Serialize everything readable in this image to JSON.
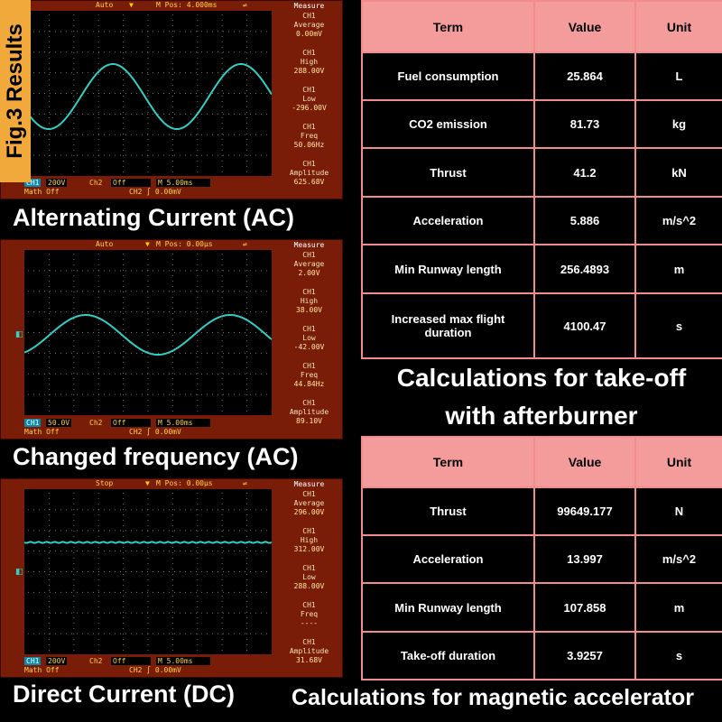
{
  "fig_label": "Fig.3 Results",
  "scopes": [
    {
      "top_mode": "Auto",
      "top_mpos": "M Pos: 4.000ms",
      "measure_title": "Measure",
      "measurements": [
        {
          "ch": "CH1",
          "label": "Average",
          "value": "0.00mV"
        },
        {
          "ch": "CH1",
          "label": "High",
          "value": "288.00V"
        },
        {
          "ch": "CH1",
          "label": "Low",
          "value": "-296.00V"
        },
        {
          "ch": "CH1",
          "label": "Freq",
          "value": "50.06Hz"
        },
        {
          "ch": "CH1",
          "label": "Amplitude",
          "value": "625.68V"
        }
      ],
      "ch1_label": "CH1",
      "ch1_scale": "200V",
      "ch2_label": "Ch2",
      "ch2_state": "Off",
      "timebase": "M 5.00ms",
      "math": "Math  Off",
      "trigger": "CH2  ∫  0.00mV",
      "caption": "Alternating Current (AC)"
    },
    {
      "top_mode": "Auto",
      "top_mpos": "M Pos: 0.00µs",
      "measure_title": "Measure",
      "measurements": [
        {
          "ch": "CH1",
          "label": "Average",
          "value": "2.00V"
        },
        {
          "ch": "CH1",
          "label": "High",
          "value": "38.00V"
        },
        {
          "ch": "CH1",
          "label": "Low",
          "value": "-42.00V"
        },
        {
          "ch": "CH1",
          "label": "Freq",
          "value": "44.84Hz"
        },
        {
          "ch": "CH1",
          "label": "Amplitude",
          "value": "89.10V"
        }
      ],
      "ch1_label": "CH1",
      "ch1_scale": "50.0V",
      "ch2_label": "Ch2",
      "ch2_state": "Off",
      "timebase": "M 5.00ms",
      "math": "Math  Off",
      "trigger": "CH2  ∫  0.00mV",
      "caption": "Changed frequency (AC)"
    },
    {
      "top_mode": "Stop",
      "top_mpos": "M Pos: 0.00µs",
      "measure_title": "Measure",
      "measurements": [
        {
          "ch": "CH1",
          "label": "Average",
          "value": "296.00V"
        },
        {
          "ch": "CH1",
          "label": "High",
          "value": "312.00V"
        },
        {
          "ch": "CH1",
          "label": "Low",
          "value": "288.00V"
        },
        {
          "ch": "CH1",
          "label": "Freq",
          "value": "----"
        },
        {
          "ch": "CH1",
          "label": "Amplitude",
          "value": "31.68V"
        }
      ],
      "ch1_label": "CH1",
      "ch1_scale": "200V",
      "ch2_label": "Ch2",
      "ch2_state": "Off",
      "timebase": "M 5.00ms",
      "math": "Math  Off",
      "trigger": "CH2  ∫  0.00mV",
      "caption": "Direct Current (DC)"
    }
  ],
  "table1": {
    "headers": [
      "Term",
      "Value",
      "Unit"
    ],
    "rows": [
      [
        "Fuel consumption",
        "25.864",
        "L"
      ],
      [
        "CO2 emission",
        "81.73",
        "kg"
      ],
      [
        "Thrust",
        "41.2",
        "kN"
      ],
      [
        "Acceleration",
        "5.886",
        "m/s^2"
      ],
      [
        "Min Runway length",
        "256.4893",
        "m"
      ],
      [
        "Increased max flight duration",
        "4100.47",
        "s"
      ]
    ],
    "caption_line1": "Calculations for take-off",
    "caption_line2": "with afterburner"
  },
  "table2": {
    "headers": [
      "Term",
      "Value",
      "Unit"
    ],
    "rows": [
      [
        "Thrust",
        "99649.177",
        "N"
      ],
      [
        "Acceleration",
        "13.997",
        "m/s^2"
      ],
      [
        "Min Runway length",
        "107.858",
        "m"
      ],
      [
        "Take-off duration",
        "3.9257",
        "s"
      ]
    ],
    "caption": "Calculations for magnetic accelerator"
  },
  "colors": {
    "trace": "#2fcfc4",
    "table_header": "#f49b9b",
    "fig_tag": "#f2a93b",
    "scope_frame": "#7a1d08"
  }
}
